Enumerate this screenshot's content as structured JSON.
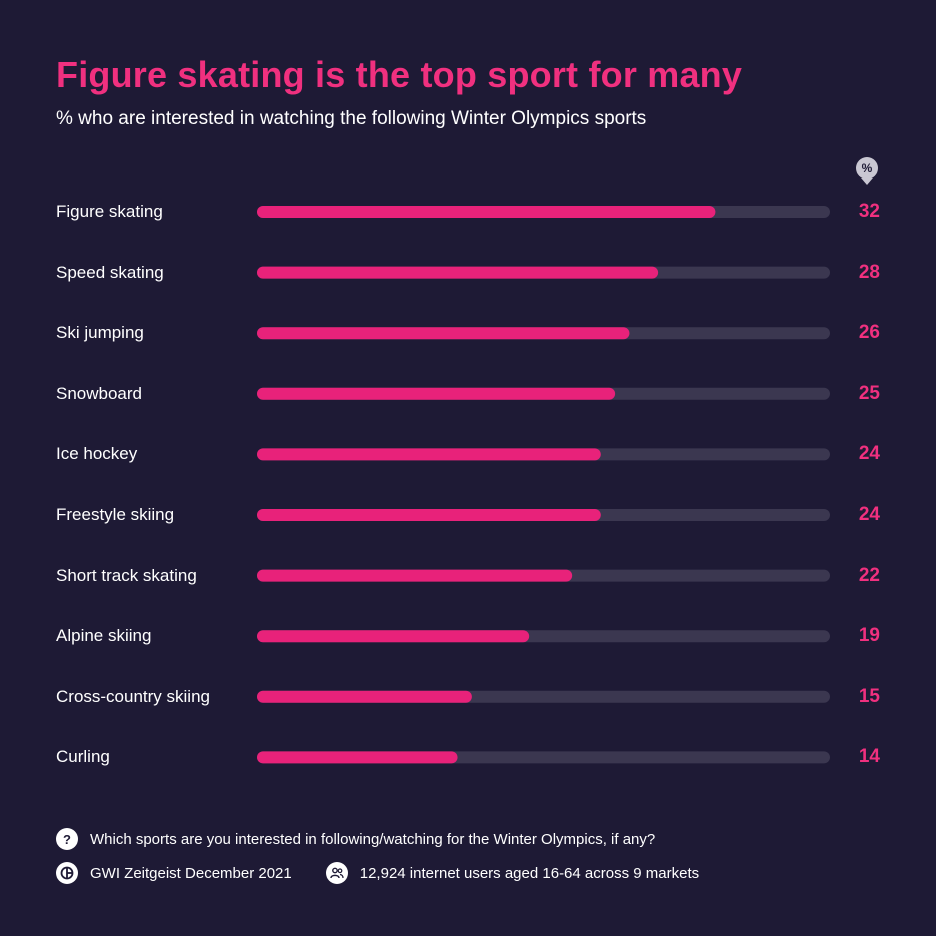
{
  "header": {
    "title": "Figure skating is the top sport for many",
    "subtitle": "% who are interested in watching the following Winter Olympics sports",
    "unit": "%"
  },
  "colors": {
    "background": "#1e1a35",
    "bar_fill": "#e8227a",
    "bar_track": "#3b3750",
    "accent": "#f0307f"
  },
  "chart_data": {
    "type": "bar",
    "orientation": "horizontal",
    "categories": [
      "Figure skating",
      "Speed skating",
      "Ski jumping",
      "Snowboard",
      "Ice hockey",
      "Freestyle skiing",
      "Short track skating",
      "Alpine skiing",
      "Cross-country skiing",
      "Curling"
    ],
    "values": [
      32,
      28,
      26,
      25,
      24,
      24,
      22,
      19,
      15,
      14
    ],
    "value_labels": [
      "32",
      "28",
      "26",
      "25",
      "24",
      "24",
      "22",
      "19",
      "15",
      "14"
    ],
    "xlim": [
      0,
      40
    ],
    "title": "Figure skating is the top sport for many",
    "subtitle": "% who are interested in watching the following Winter Olympics sports",
    "grid": false
  },
  "footer": {
    "question": "Which sports are you interested in following/watching for the Winter Olympics, if any?",
    "source": "GWI Zeitgeist December 2021",
    "sample": "12,924 internet users aged 16-64 across 9 markets",
    "question_icon": "question-icon",
    "source_icon": "gwi-logo-icon",
    "sample_icon": "people-icon"
  }
}
